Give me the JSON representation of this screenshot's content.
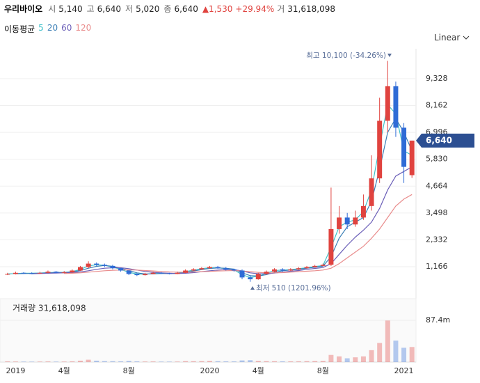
{
  "header": {
    "name": "우리바이오",
    "items": [
      {
        "label": "시",
        "value": "5,140"
      },
      {
        "label": "고",
        "value": "6,640"
      },
      {
        "label": "저",
        "value": "5,020"
      },
      {
        "label": "종",
        "value": "6,640"
      }
    ],
    "change": "▲1,530",
    "change_pct": "+29.94%",
    "volume_label": "거",
    "volume": "31,618,098"
  },
  "chart_data": {
    "type": "candlestick",
    "ma_title": "이동평균",
    "scale": "Linear",
    "categories": [
      null,
      "2019",
      null,
      null,
      null,
      null,
      null,
      "4월",
      null,
      null,
      null,
      null,
      null,
      null,
      null,
      "8월",
      null,
      null,
      null,
      null,
      null,
      null,
      null,
      null,
      null,
      "2020",
      null,
      null,
      null,
      null,
      null,
      "4월",
      null,
      null,
      null,
      null,
      null,
      null,
      null,
      "8월",
      null,
      null,
      null,
      null,
      null,
      null,
      null,
      null,
      null,
      "2021",
      null
    ],
    "open": [
      820,
      850,
      900,
      880,
      870,
      900,
      950,
      900,
      920,
      1000,
      1150,
      1300,
      1250,
      1200,
      1100,
      1000,
      850,
      800,
      850,
      900,
      880,
      850,
      900,
      1000,
      1050,
      1100,
      1150,
      1100,
      1050,
      1000,
      700,
      620,
      850,
      950,
      1050,
      1000,
      1050,
      1100,
      1150,
      1200,
      1250,
      2800,
      3300,
      3000,
      3300,
      3800,
      5000,
      7500,
      9000,
      7200,
      5140
    ],
    "high": [
      900,
      950,
      930,
      920,
      950,
      1000,
      980,
      980,
      1050,
      1200,
      1400,
      1350,
      1300,
      1250,
      1100,
      1000,
      880,
      900,
      950,
      930,
      900,
      950,
      1050,
      1100,
      1150,
      1200,
      1200,
      1150,
      1080,
      1050,
      800,
      900,
      1000,
      1100,
      1100,
      1100,
      1150,
      1200,
      1250,
      1300,
      4600,
      3800,
      3500,
      3600,
      4300,
      6000,
      8500,
      10100,
      9200,
      7400,
      6640
    ],
    "low": [
      800,
      830,
      850,
      840,
      850,
      880,
      880,
      880,
      900,
      980,
      1100,
      1200,
      1150,
      1050,
      950,
      800,
      760,
      780,
      840,
      850,
      830,
      840,
      880,
      980,
      1030,
      1080,
      1080,
      1000,
      950,
      620,
      510,
      600,
      820,
      920,
      950,
      980,
      1020,
      1080,
      1120,
      1180,
      1200,
      2600,
      2800,
      2900,
      3200,
      3600,
      4800,
      7000,
      6800,
      4800,
      5020
    ],
    "close": [
      850,
      900,
      880,
      870,
      900,
      950,
      900,
      920,
      1000,
      1150,
      1300,
      1250,
      1200,
      1100,
      1000,
      850,
      800,
      850,
      900,
      880,
      850,
      900,
      1000,
      1050,
      1100,
      1150,
      1100,
      1050,
      1000,
      700,
      620,
      850,
      950,
      1050,
      1000,
      1050,
      1100,
      1150,
      1200,
      1250,
      2800,
      3300,
      3000,
      3300,
      3800,
      5000,
      7500,
      9000,
      7200,
      5500,
      6640
    ],
    "up_color": "#e0433f",
    "down_color": "#2f6bd6",
    "moving_averages": [
      {
        "name": "5",
        "color": "#3fc1c9",
        "values": [
          850,
          870,
          880,
          880,
          890,
          910,
          920,
          920,
          950,
          1050,
          1200,
          1250,
          1230,
          1150,
          1050,
          920,
          850,
          840,
          870,
          880,
          870,
          880,
          950,
          1020,
          1080,
          1120,
          1120,
          1080,
          1030,
          820,
          700,
          750,
          880,
          1000,
          1020,
          1040,
          1080,
          1120,
          1170,
          1220,
          2000,
          2900,
          3100,
          3200,
          3550,
          4500,
          6400,
          8200,
          7800,
          6200,
          6000
        ]
      },
      {
        "name": "20",
        "color": "#3b7fb6",
        "values": [
          null,
          860,
          870,
          875,
          880,
          900,
          910,
          915,
          935,
          1000,
          1100,
          1180,
          1220,
          1180,
          1100,
          1000,
          900,
          850,
          850,
          870,
          870,
          875,
          920,
          980,
          1040,
          1090,
          1110,
          1100,
          1060,
          900,
          780,
          760,
          820,
          920,
          990,
          1020,
          1050,
          1100,
          1140,
          1190,
          1600,
          2400,
          2900,
          3100,
          3300,
          4000,
          5400,
          7000,
          7600,
          7000,
          6200
        ]
      },
      {
        "name": "60",
        "color": "#6b5fb8",
        "values": [
          null,
          null,
          null,
          860,
          870,
          880,
          890,
          900,
          910,
          940,
          990,
          1050,
          1100,
          1120,
          1120,
          1080,
          1020,
          960,
          920,
          900,
          880,
          870,
          880,
          910,
          950,
          990,
          1020,
          1040,
          1040,
          980,
          900,
          860,
          860,
          890,
          930,
          970,
          1000,
          1050,
          1090,
          1130,
          1300,
          1700,
          2100,
          2450,
          2750,
          3100,
          3700,
          4500,
          5100,
          5300,
          5500
        ]
      },
      {
        "name": "120",
        "color": "#e98c8c",
        "values": [
          null,
          null,
          null,
          null,
          null,
          null,
          null,
          870,
          880,
          900,
          930,
          960,
          990,
          1010,
          1020,
          1030,
          1020,
          1000,
          980,
          960,
          940,
          930,
          930,
          940,
          950,
          960,
          980,
          990,
          1000,
          980,
          950,
          920,
          900,
          900,
          910,
          930,
          950,
          970,
          990,
          1020,
          1100,
          1300,
          1550,
          1800,
          2050,
          2400,
          2800,
          3300,
          3800,
          4100,
          4300
        ]
      }
    ],
    "ylim": [
      -104,
      10476
    ],
    "yticks": [
      {
        "value": 1166,
        "label": "1,166"
      },
      {
        "value": 2332,
        "label": "2,332"
      },
      {
        "value": 3498,
        "label": "3,498"
      },
      {
        "value": 4664,
        "label": "4,664"
      },
      {
        "value": 5830,
        "label": "5,830"
      },
      {
        "value": 6996,
        "label": "6,996"
      },
      {
        "value": 8162,
        "label": "8,162"
      },
      {
        "value": 9328,
        "label": "9,328"
      }
    ],
    "grid": true,
    "last_price": {
      "value": 6640,
      "label": "6,640"
    },
    "annotations": [
      "최고 10,100 (-34.26%)",
      "최저 510 (1201.96%)"
    ],
    "volume_title": "거래량 31,618,098",
    "volume": [
      1500000,
      1200000,
      1000000,
      900000,
      1100000,
      1300000,
      1000000,
      1100000,
      1500000,
      3000000,
      5000000,
      3000000,
      2000000,
      1800000,
      1500000,
      2500000,
      1500000,
      1200000,
      1300000,
      1000000,
      1000000,
      1100000,
      2000000,
      1800000,
      2000000,
      2500000,
      1800000,
      1500000,
      1400000,
      3500000,
      4000000,
      2500000,
      2000000,
      1800000,
      1500000,
      1500000,
      1600000,
      2000000,
      2200000,
      2500000,
      15000000,
      12000000,
      8000000,
      10000000,
      12000000,
      25000000,
      40000000,
      87000000,
      45000000,
      30000000,
      31618098
    ],
    "volume_ylim": [
      0,
      128200000
    ],
    "volume_ticks": [
      {
        "value": 87400000,
        "label": "87.4m"
      }
    ]
  }
}
